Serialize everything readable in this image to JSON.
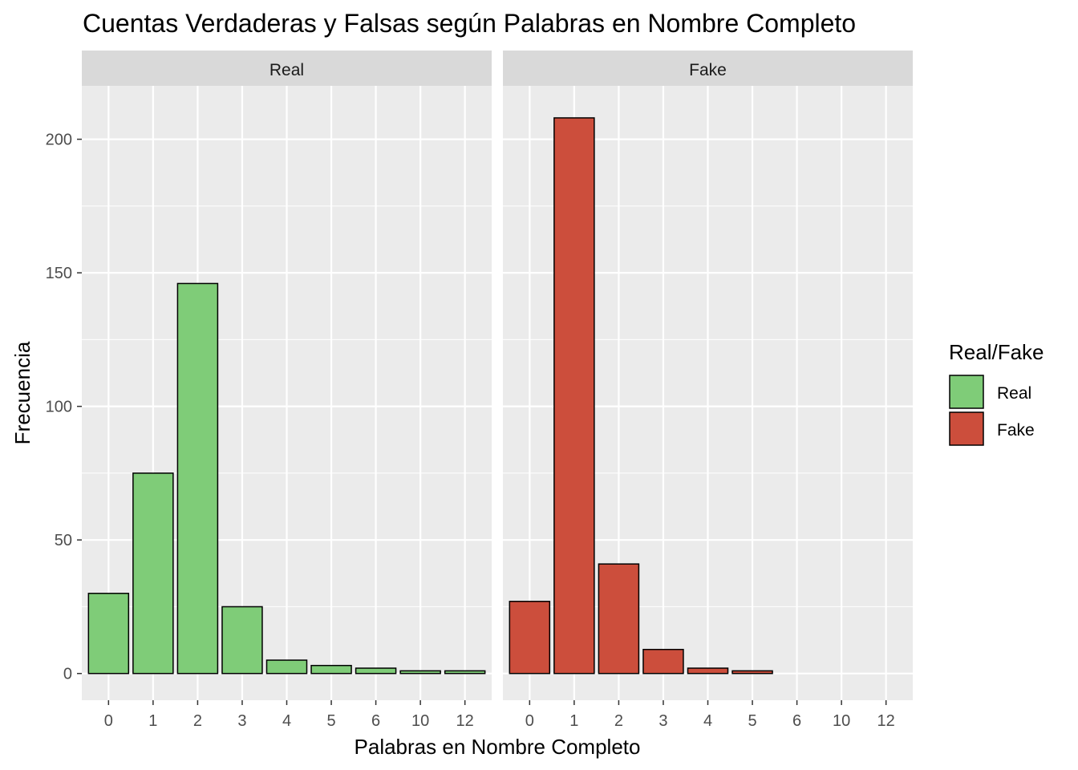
{
  "chart_data": {
    "type": "bar",
    "title": "Cuentas Verdaderas y Falsas según Palabras en Nombre Completo",
    "xlabel": "Palabras en Nombre Completo",
    "ylabel": "Frecuencia",
    "categories": [
      "0",
      "1",
      "2",
      "3",
      "4",
      "5",
      "6",
      "10",
      "12"
    ],
    "ylim": [
      -10,
      220
    ],
    "yticks": [
      0,
      50,
      100,
      150,
      200
    ],
    "grid": true,
    "legend_position": "right",
    "legend_title": "Real/Fake",
    "panels": [
      {
        "strip": "Real",
        "series": "Real",
        "values": [
          30,
          75,
          146,
          25,
          5,
          3,
          2,
          1,
          1
        ]
      },
      {
        "strip": "Fake",
        "series": "Fake",
        "values": [
          27,
          208,
          41,
          9,
          2,
          1,
          null,
          null,
          null
        ]
      }
    ],
    "legend": [
      {
        "label": "Real",
        "color": "#7fcc78"
      },
      {
        "label": "Fake",
        "color": "#cc4e3c"
      }
    ]
  },
  "colors": {
    "panel_bg": "#ebebeb",
    "strip_bg": "#d9d9d9",
    "grid": "#ffffff",
    "bar_outline": "#000000"
  }
}
